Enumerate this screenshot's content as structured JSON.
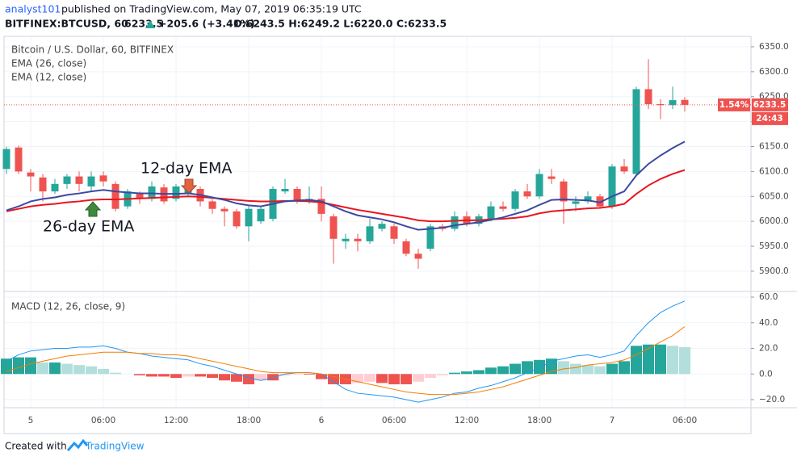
{
  "header": {
    "author": "analyst101",
    "published": "published on TradingView.com, May 07, 2019 06:35:19 UTC",
    "symbol": "BITFINEX:BTCUSD, 60",
    "price": "6233.5",
    "change": "+205.6 (+3.41%)",
    "ohlc": "O:6243.5 H:6249.2 L:6220.0 C:6233.5"
  },
  "chart_data": [
    {
      "type": "candlestick",
      "title": "Bitcoin / U.S. Dollar, 60, BITFINEX",
      "categories": [
        null,
        null,
        "5",
        null,
        null,
        null,
        null,
        null,
        "06:00",
        null,
        null,
        null,
        null,
        null,
        "12:00",
        null,
        null,
        null,
        null,
        null,
        "18:00",
        null,
        null,
        null,
        null,
        null,
        "6",
        null,
        null,
        null,
        null,
        null,
        "06:00",
        null,
        null,
        null,
        null,
        null,
        "12:00",
        null,
        null,
        null,
        null,
        null,
        "18:00",
        null,
        null,
        null,
        null,
        null,
        "7",
        null,
        null,
        null,
        null,
        null,
        "06:00"
      ],
      "open": [
        6105,
        6148,
        6098,
        6088,
        6060,
        6075,
        6090,
        6070,
        6092,
        6075,
        6030,
        6055,
        6045,
        6068,
        6045,
        6055,
        6065,
        6040,
        6025,
        6020,
        5990,
        6000,
        6005,
        6060,
        6065,
        6040,
        6045,
        6010,
        5960,
        5965,
        5960,
        5985,
        5990,
        5960,
        5935,
        5945,
        5990,
        5985,
        6010,
        5995,
        6005,
        6030,
        6025,
        6060,
        6050,
        6090,
        6080,
        6035,
        6040,
        6050,
        6030,
        6110,
        6095,
        6265,
        6235,
        6233,
        6243.5
      ],
      "high": [
        6150,
        6152,
        6105,
        6095,
        6085,
        6095,
        6100,
        6100,
        6100,
        6080,
        6065,
        6060,
        6080,
        6075,
        6075,
        6075,
        6070,
        6045,
        6030,
        6025,
        6030,
        6030,
        6070,
        6085,
        6070,
        6070,
        6070,
        6015,
        5975,
        5975,
        6005,
        6000,
        5995,
        5965,
        5945,
        5995,
        5995,
        6020,
        6020,
        6015,
        6040,
        6040,
        6065,
        6075,
        6105,
        6105,
        6085,
        6050,
        6060,
        6055,
        6115,
        6125,
        6270,
        6325,
        6245,
        6270,
        6249.2
      ],
      "low": [
        6095,
        6095,
        6060,
        6040,
        6055,
        6065,
        6060,
        6060,
        6070,
        6020,
        6025,
        6035,
        6040,
        6035,
        6040,
        6050,
        6030,
        6015,
        5990,
        5985,
        5960,
        5995,
        6000,
        6055,
        6035,
        6035,
        6000,
        5915,
        5945,
        5940,
        5955,
        5980,
        5955,
        5930,
        5905,
        5940,
        5980,
        5980,
        5990,
        5990,
        6000,
        6020,
        6020,
        6045,
        6045,
        6075,
        5995,
        6020,
        6035,
        6025,
        6025,
        6095,
        6090,
        6225,
        6205,
        6225,
        6220.0
      ],
      "close": [
        6145,
        6100,
        6090,
        6060,
        6075,
        6090,
        6075,
        6090,
        6080,
        6025,
        6060,
        6045,
        6070,
        6040,
        6070,
        6065,
        6040,
        6025,
        6020,
        5990,
        6025,
        6025,
        6065,
        6065,
        6040,
        6045,
        6015,
        5965,
        5965,
        5960,
        5990,
        5995,
        5965,
        5935,
        5925,
        5990,
        5985,
        6010,
        5995,
        6010,
        6030,
        6025,
        6060,
        6050,
        6095,
        6085,
        6040,
        6040,
        6050,
        6030,
        6110,
        6100,
        6265,
        6235,
        6233,
        6243,
        6233.5
      ],
      "up_color": "#26a69a",
      "down_color": "#ef5350",
      "series": [
        {
          "name": "EMA (26, close)",
          "color": "#e8161f",
          "values": [
            6020,
            6025,
            6030,
            6033,
            6035,
            6038,
            6040,
            6043,
            6044,
            6044,
            6045,
            6046,
            6047,
            6048,
            6049,
            6050,
            6049,
            6047,
            6045,
            6043,
            6041,
            6040,
            6040,
            6041,
            6041,
            6040,
            6038,
            6033,
            6028,
            6023,
            6019,
            6015,
            6011,
            6007,
            6002,
            6000,
            6000,
            6001,
            6002,
            6002,
            6004,
            6005,
            6007,
            6010,
            6016,
            6020,
            6022,
            6024,
            6026,
            6027,
            6030,
            6035,
            6055,
            6072,
            6085,
            6095,
            6103
          ]
        },
        {
          "name": "EMA (12, close)",
          "color": "#3c4aa0",
          "values": [
            6022,
            6030,
            6040,
            6045,
            6048,
            6053,
            6056,
            6060,
            6063,
            6060,
            6058,
            6056,
            6056,
            6055,
            6055,
            6056,
            6053,
            6048,
            6043,
            6036,
            6032,
            6030,
            6035,
            6040,
            6042,
            6043,
            6040,
            6030,
            6020,
            6012,
            6008,
            6004,
            5998,
            5990,
            5983,
            5985,
            5987,
            5992,
            5995,
            5998,
            6003,
            6008,
            6015,
            6022,
            6033,
            6043,
            6044,
            6043,
            6042,
            6038,
            6050,
            6060,
            6092,
            6115,
            6132,
            6147,
            6160
          ]
        }
      ],
      "ylim": [
        5861,
        6371
      ],
      "yticks": [
        {
          "value": 5900,
          "label": "5900.0"
        },
        {
          "value": 5950,
          "label": "5950.0"
        },
        {
          "value": 6000,
          "label": "6000.0"
        },
        {
          "value": 6050,
          "label": "6050.0"
        },
        {
          "value": 6100,
          "label": "6100.0"
        },
        {
          "value": 6150,
          "label": "6150.0"
        },
        {
          "value": 6200,
          "label": "6200.0"
        },
        {
          "value": 6250,
          "label": "6250.0"
        },
        {
          "value": 6300,
          "label": "6300.0"
        },
        {
          "value": 6350,
          "label": "6350.0"
        }
      ],
      "last_price": 6233.5,
      "change_label": "1.54%",
      "countdown": "24:43",
      "annotations": [
        "12-day EMA",
        "26-day EMA"
      ],
      "grid": true
    },
    {
      "type": "macd",
      "title": "MACD (12, 26, close, 9)",
      "histogram": [
        12,
        13,
        13,
        9,
        9,
        8,
        7,
        6,
        4,
        1,
        0,
        -1,
        -2,
        -2,
        -3,
        -2,
        -2,
        -3,
        -5,
        -6,
        -8,
        -5,
        -5,
        -1,
        -0.5,
        -0.5,
        -4,
        -8,
        -8,
        -7,
        -6,
        -7,
        -8,
        -8,
        -6,
        -3,
        -1,
        1,
        2,
        3,
        5,
        6,
        8,
        10,
        11,
        12,
        10,
        8,
        7,
        6,
        8,
        10,
        22,
        23,
        23,
        22,
        21
      ],
      "histogram_colors": [
        "#26a69a",
        "#b2dfdb",
        "#ef5350",
        "#ffcdd2"
      ],
      "series": [
        {
          "color": "#2196f3",
          "values": [
            10,
            15,
            18,
            19,
            20,
            20,
            21,
            21,
            22,
            20,
            17,
            16,
            14,
            13,
            12,
            11,
            8,
            6,
            3,
            0,
            -3,
            -5,
            -3,
            0,
            1,
            1,
            0,
            -6,
            -12,
            -15,
            -16,
            -17,
            -18,
            -20,
            -22,
            -20,
            -18,
            -15,
            -14,
            -11,
            -9,
            -6,
            -3,
            1,
            5,
            10,
            12,
            14,
            15,
            13,
            15,
            18,
            30,
            40,
            48,
            53,
            57
          ]
        },
        {
          "color": "#f57c00",
          "values": [
            2,
            5,
            8,
            10,
            12,
            14,
            15,
            16,
            17,
            17,
            17,
            16,
            16,
            15,
            15,
            14,
            12,
            10,
            8,
            6,
            4,
            2,
            1,
            1,
            1,
            1,
            0,
            -2,
            -4,
            -6,
            -8,
            -10,
            -12,
            -14,
            -15,
            -16,
            -16,
            -16,
            -15,
            -14,
            -12,
            -10,
            -7,
            -4,
            -1,
            2,
            4,
            5,
            7,
            8,
            9,
            11,
            15,
            20,
            25,
            30,
            37
          ]
        }
      ],
      "ylim": [
        -26.3,
        63.8
      ],
      "yticks": [
        {
          "value": -20,
          "label": "−20.0"
        },
        {
          "value": 0,
          "label": "0.0"
        },
        {
          "value": 20,
          "label": "20.0"
        },
        {
          "value": 40,
          "label": "40.0"
        },
        {
          "value": 60,
          "label": "60.0"
        }
      ],
      "grid": true
    }
  ],
  "footer": {
    "created": "Created with",
    "brand": "TradingView"
  }
}
